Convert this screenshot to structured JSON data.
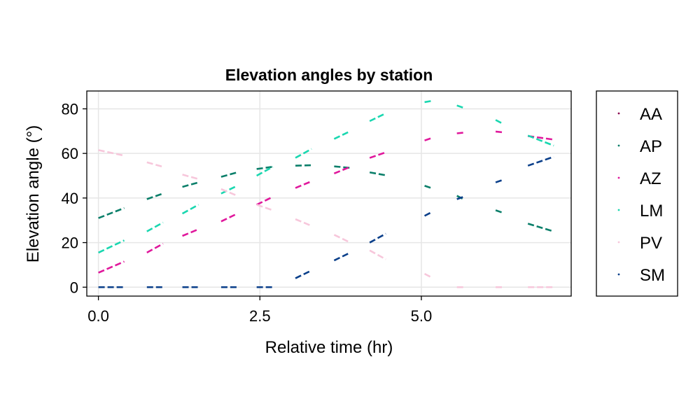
{
  "chart_data": {
    "type": "scatter",
    "title": "Elevation angles by station",
    "xlabel": "Relative time (hr)",
    "ylabel": "Elevation angle (°)",
    "xlim": [
      -0.18,
      7.32
    ],
    "ylim": [
      -4.0,
      88.0
    ],
    "xticks": [
      0.0,
      2.5,
      5.0
    ],
    "xtick_labels": [
      "0.0",
      "2.5",
      "5.0"
    ],
    "yticks": [
      0,
      20,
      40,
      60,
      80
    ],
    "ytick_labels": [
      "0",
      "20",
      "40",
      "60",
      "80"
    ],
    "grid": true,
    "legend_position": "right",
    "series": [
      {
        "name": "AA",
        "color": "#8b0a50",
        "segments": []
      },
      {
        "name": "AP",
        "color": "#0b7f6a",
        "segments": [
          [
            0.0,
            31.0,
            0.4,
            35.5
          ],
          [
            0.75,
            39.5,
            1.0,
            42.0
          ],
          [
            1.3,
            45.0,
            1.55,
            47.0
          ],
          [
            1.9,
            49.5,
            2.15,
            51.5
          ],
          [
            2.45,
            53.0,
            2.7,
            54.0
          ],
          [
            3.05,
            54.5,
            3.3,
            54.7
          ],
          [
            3.65,
            54.2,
            3.9,
            53.5
          ],
          [
            4.2,
            51.5,
            4.45,
            50.2
          ],
          [
            5.05,
            45.5,
            5.15,
            44.5
          ],
          [
            5.55,
            41.0,
            5.65,
            39.5
          ],
          [
            6.15,
            34.5,
            6.25,
            33.5
          ],
          [
            6.65,
            28.5,
            7.05,
            25.0
          ]
        ]
      },
      {
        "name": "AZ",
        "color": "#e0189c",
        "segments": [
          [
            0.0,
            6.5,
            0.4,
            11.5
          ],
          [
            0.75,
            15.5,
            1.0,
            19.5
          ],
          [
            1.3,
            23.0,
            1.55,
            26.0
          ],
          [
            1.9,
            29.5,
            2.15,
            33.0
          ],
          [
            2.45,
            37.0,
            2.7,
            40.5
          ],
          [
            3.05,
            44.5,
            3.3,
            47.5
          ],
          [
            3.65,
            51.0,
            3.9,
            54.0
          ],
          [
            4.2,
            58.0,
            4.45,
            60.5
          ],
          [
            5.05,
            65.8,
            5.15,
            66.8
          ],
          [
            5.55,
            69.0,
            5.65,
            69.3
          ],
          [
            6.15,
            69.8,
            6.25,
            69.5
          ],
          [
            6.65,
            67.8,
            7.05,
            66.2
          ]
        ]
      },
      {
        "name": "LM",
        "color": "#1ad7b0",
        "segments": [
          [
            0.0,
            15.5,
            0.4,
            21.0
          ],
          [
            0.75,
            25.0,
            1.0,
            29.0
          ],
          [
            1.3,
            33.0,
            1.55,
            37.0
          ],
          [
            1.9,
            42.0,
            2.15,
            45.5
          ],
          [
            2.45,
            50.0,
            2.7,
            54.0
          ],
          [
            3.05,
            58.0,
            3.3,
            62.0
          ],
          [
            3.65,
            66.5,
            3.9,
            70.0
          ],
          [
            4.2,
            74.5,
            4.45,
            78.0
          ],
          [
            5.05,
            83.0,
            5.15,
            83.5
          ],
          [
            5.55,
            81.5,
            5.65,
            80.5
          ],
          [
            6.15,
            75.0,
            6.25,
            73.5
          ],
          [
            6.65,
            68.0,
            7.05,
            63.5
          ]
        ]
      },
      {
        "name": "PV",
        "color": "#f7c7db",
        "segments": [
          [
            0.0,
            61.5,
            0.4,
            59.0
          ],
          [
            0.75,
            56.0,
            1.0,
            54.0
          ],
          [
            1.3,
            50.5,
            1.55,
            48.5
          ],
          [
            1.9,
            44.0,
            2.15,
            41.0
          ],
          [
            2.45,
            37.0,
            2.7,
            34.5
          ],
          [
            3.05,
            30.5,
            3.3,
            27.5
          ],
          [
            3.65,
            23.5,
            3.9,
            20.0
          ],
          [
            4.2,
            16.5,
            4.45,
            12.5
          ],
          [
            5.05,
            6.0,
            5.15,
            4.5
          ],
          [
            5.55,
            0.0,
            5.65,
            0.0
          ],
          [
            6.15,
            0.0,
            6.25,
            0.0
          ],
          [
            6.65,
            0.0,
            7.05,
            0.0
          ]
        ]
      },
      {
        "name": "SM",
        "color": "#0a3f8a",
        "segments": [
          [
            0.0,
            0.0,
            0.4,
            0.0
          ],
          [
            0.75,
            0.0,
            1.0,
            0.0
          ],
          [
            1.3,
            0.0,
            1.55,
            0.0
          ],
          [
            1.9,
            0.0,
            2.15,
            0.0
          ],
          [
            2.45,
            0.0,
            2.7,
            0.0
          ],
          [
            3.05,
            4.0,
            3.3,
            7.5
          ],
          [
            3.65,
            12.0,
            3.9,
            15.5
          ],
          [
            4.2,
            20.0,
            4.45,
            24.0
          ],
          [
            5.05,
            32.0,
            5.15,
            33.5
          ],
          [
            5.55,
            39.5,
            5.65,
            40.5
          ],
          [
            6.15,
            47.0,
            6.25,
            48.0
          ],
          [
            6.65,
            54.5,
            7.05,
            58.5
          ]
        ]
      }
    ]
  }
}
